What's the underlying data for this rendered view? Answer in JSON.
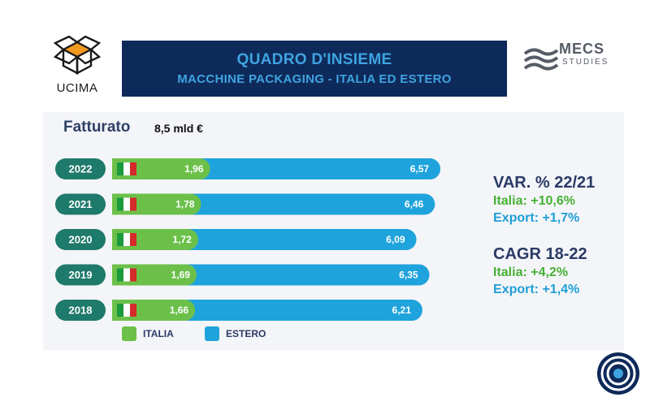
{
  "header": {
    "title_line1": "QUADRO D'INSIEME",
    "title_line2": "MACCHINE PACKAGING - ITALIA ED ESTERO",
    "left_logo_text": "UCIMA",
    "right_logo_text": "MECS",
    "right_logo_subtext": "STUDIES"
  },
  "summary": {
    "label": "Fatturato",
    "value": "8,5 mld €"
  },
  "stats": {
    "var_title": "VAR. % 22/21",
    "var_italia": "Italia: +10,6%",
    "var_export": "Export:  +1,7%",
    "cagr_title": "CAGR 18-22",
    "cagr_italia": "Italia: +4,2%",
    "cagr_export": "Export:  +1,4%"
  },
  "colors": {
    "italia": "#6cc04a",
    "estero": "#1fa3dc",
    "year_pill": "#1e7a6a",
    "title_bg": "#0e2a5a",
    "title_text": "#3ea4e0"
  },
  "chart_data": {
    "type": "bar",
    "orientation": "horizontal",
    "stacked": true,
    "categories": [
      "2022",
      "2021",
      "2020",
      "2019",
      "2018"
    ],
    "series": [
      {
        "name": "ITALIA",
        "values": [
          1.96,
          1.78,
          1.72,
          1.69,
          1.66
        ],
        "labels": [
          "1,96",
          "1,78",
          "1,72",
          "1,69",
          "1,66"
        ]
      },
      {
        "name": "ESTERO",
        "values": [
          6.57,
          6.46,
          6.09,
          6.35,
          6.21
        ],
        "labels": [
          "6,57",
          "6,46",
          "6,09",
          "6,35",
          "6,21"
        ]
      }
    ],
    "unit": "mld €",
    "legend": [
      "ITALIA",
      "ESTERO"
    ],
    "legend_position": "bottom"
  }
}
